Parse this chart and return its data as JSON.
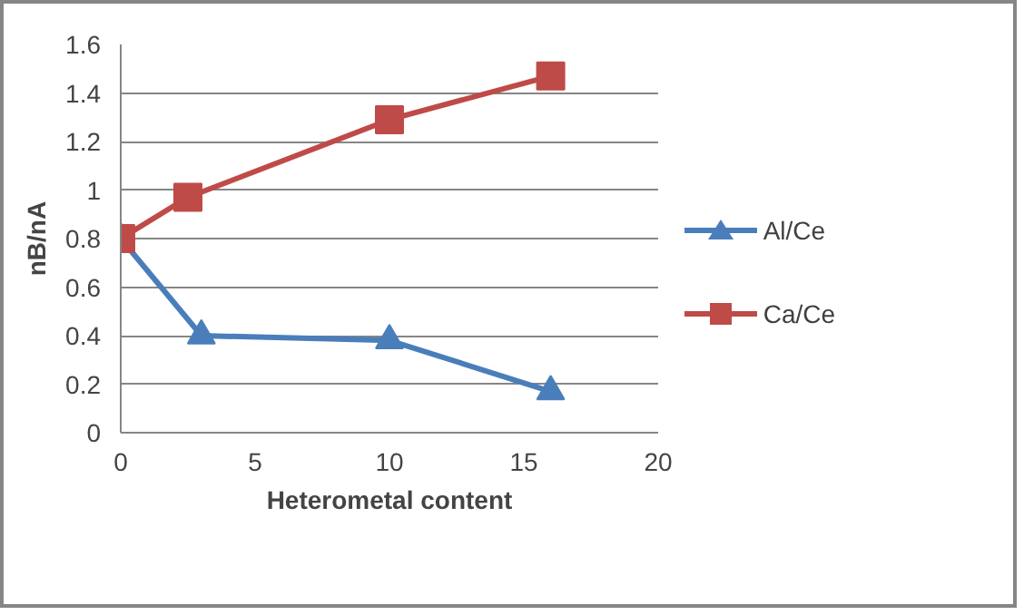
{
  "chart_data": {
    "type": "line",
    "xlabel": "Heterometal content",
    "ylabel": "nB/nA",
    "xlim": [
      0,
      20
    ],
    "xticks": [
      0,
      5,
      10,
      15,
      20
    ],
    "ylim": [
      0,
      1.6
    ],
    "yticks": [
      0,
      0.2,
      0.4,
      0.6,
      0.8,
      1,
      1.2,
      1.4,
      1.6
    ],
    "grid": "y",
    "legend": "right",
    "line_style": "solid",
    "series": [
      {
        "name": "Al/Ce",
        "color": "#4a7ebb",
        "marker": "triangle",
        "x": [
          0,
          3,
          10,
          16
        ],
        "values": [
          0.8,
          0.4,
          0.38,
          0.17
        ]
      },
      {
        "name": "Ca/Ce",
        "color": "#be4b48",
        "marker": "square",
        "x": [
          0,
          2.5,
          10,
          16
        ],
        "values": [
          0.8,
          0.97,
          1.29,
          1.47
        ]
      }
    ]
  }
}
